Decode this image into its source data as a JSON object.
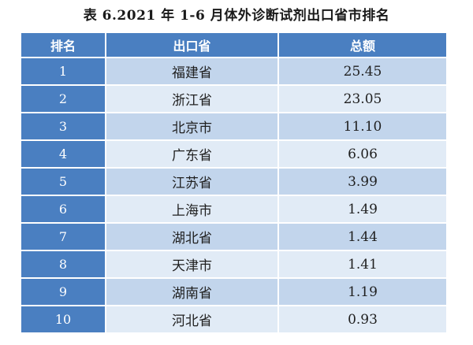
{
  "title": "表 6.2021 年 1-6 月体外诊断试剂出口省市排名",
  "headers": {
    "rank": "排名",
    "province": "出口省",
    "total": "总额"
  },
  "rows": [
    {
      "rank": "1",
      "province": "福建省",
      "total": "25.45"
    },
    {
      "rank": "2",
      "province": "浙江省",
      "total": "23.05"
    },
    {
      "rank": "3",
      "province": "北京市",
      "total": "11.10"
    },
    {
      "rank": "4",
      "province": "广东省",
      "total": "6.06"
    },
    {
      "rank": "5",
      "province": "江苏省",
      "total": "3.99"
    },
    {
      "rank": "6",
      "province": "上海市",
      "total": "1.49"
    },
    {
      "rank": "7",
      "province": "湖北省",
      "total": "1.44"
    },
    {
      "rank": "8",
      "province": "天津市",
      "total": "1.41"
    },
    {
      "rank": "9",
      "province": "湖南省",
      "total": "1.19"
    },
    {
      "rank": "10",
      "province": "河北省",
      "total": "0.93"
    }
  ],
  "colors": {
    "header_bg": "#4a7fc1",
    "row_odd": "#c2d5ec",
    "row_even": "#e1ebf6"
  }
}
